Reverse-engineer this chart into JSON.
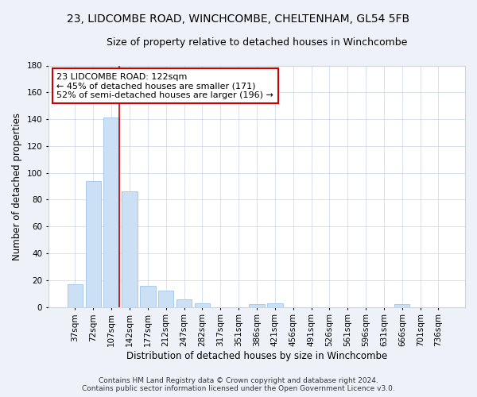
{
  "title1": "23, LIDCOMBE ROAD, WINCHCOMBE, CHELTENHAM, GL54 5FB",
  "title2": "Size of property relative to detached houses in Winchcombe",
  "xlabel": "Distribution of detached houses by size in Winchcombe",
  "ylabel": "Number of detached properties",
  "categories": [
    "37sqm",
    "72sqm",
    "107sqm",
    "142sqm",
    "177sqm",
    "212sqm",
    "247sqm",
    "282sqm",
    "317sqm",
    "351sqm",
    "386sqm",
    "421sqm",
    "456sqm",
    "491sqm",
    "526sqm",
    "561sqm",
    "596sqm",
    "631sqm",
    "666sqm",
    "701sqm",
    "736sqm"
  ],
  "values": [
    17,
    94,
    141,
    86,
    16,
    12,
    6,
    3,
    0,
    0,
    2,
    3,
    0,
    0,
    0,
    0,
    0,
    0,
    2,
    0,
    0
  ],
  "bar_color": "#cce0f5",
  "bar_edge_color": "#a0c4e8",
  "vline_color": "#cc0000",
  "vline_x": 2.42,
  "annotation_line1": "23 LIDCOMBE ROAD: 122sqm",
  "annotation_line2": "← 45% of detached houses are smaller (171)",
  "annotation_line3": "52% of semi-detached houses are larger (196) →",
  "box_edge_color": "#cc0000",
  "ylim": [
    0,
    180
  ],
  "yticks": [
    0,
    20,
    40,
    60,
    80,
    100,
    120,
    140,
    160,
    180
  ],
  "footnote1": "Contains HM Land Registry data © Crown copyright and database right 2024.",
  "footnote2": "Contains public sector information licensed under the Open Government Licence v3.0.",
  "bg_color": "#eef2f8",
  "plot_bg_color": "#ffffff",
  "grid_color": "#c8d4e8",
  "title1_fontsize": 10,
  "title2_fontsize": 9,
  "xlabel_fontsize": 8.5,
  "ylabel_fontsize": 8.5,
  "tick_fontsize": 7.5,
  "annotation_fontsize": 8,
  "footnote_fontsize": 6.5
}
